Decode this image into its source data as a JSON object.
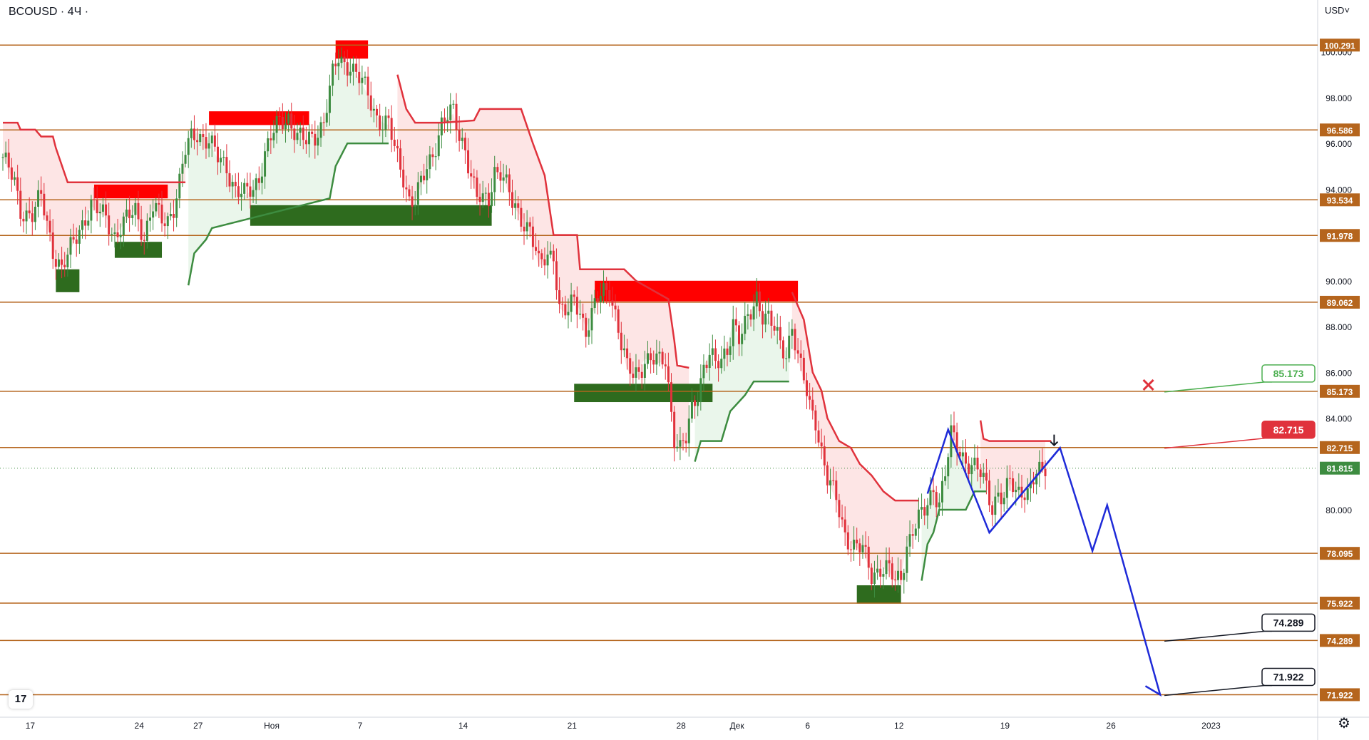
{
  "header": {
    "symbol": "BCOUSD",
    "separator": "·",
    "interval": "4Ч",
    "trailing": "·",
    "currency_menu": "USD˅"
  },
  "logo": {
    "icon": "tradingview-logo",
    "text": "17"
  },
  "settings": {
    "icon": "gear-icon",
    "glyph": "⚙"
  },
  "colors": {
    "level_line": "#b5651d",
    "level_tag": "#b5651d",
    "up": "#3d8c40",
    "down": "#e0323c",
    "cloud_up": "#e8f5e9",
    "cloud_down": "#fde2e2",
    "forecast": "#1f2bd8",
    "supply": "#ff0000",
    "demand": "#2e6b1e",
    "last_price": "#3d8c40"
  },
  "chart_data": {
    "type": "candlestick",
    "symbol": "BCOUSD",
    "interval": "4Ч",
    "currency": "USD",
    "ylim": [
      71.5,
      101.0
    ],
    "y_ticks": [
      "80.000",
      "84.000",
      "86.000",
      "88.000",
      "90.000",
      "94.000",
      "96.000",
      "98.000",
      "100.000"
    ],
    "x_ticks": [
      {
        "label": "17",
        "bar": 3
      },
      {
        "label": "24",
        "bar": 40
      },
      {
        "label": "27",
        "bar": 60
      },
      {
        "label": "Ноя",
        "bar": 85
      },
      {
        "label": "7",
        "bar": 115
      },
      {
        "label": "14",
        "bar": 150
      },
      {
        "label": "21",
        "bar": 187
      },
      {
        "label": "28",
        "bar": 224
      },
      {
        "label": "Дек",
        "bar": 243
      },
      {
        "label": "6",
        "bar": 267
      },
      {
        "label": "12",
        "bar": 298
      },
      {
        "label": "19",
        "bar": 334
      },
      {
        "label": "26",
        "bar": 370
      },
      {
        "label": "2023",
        "bar": 404
      }
    ],
    "levels": [
      {
        "price": 100.291,
        "label": "100.291"
      },
      {
        "price": 96.586,
        "label": "96.586"
      },
      {
        "price": 93.534,
        "label": "93.534"
      },
      {
        "price": 91.978,
        "label": "91.978"
      },
      {
        "price": 89.062,
        "label": "89.062"
      },
      {
        "price": 85.173,
        "label": "85.173"
      },
      {
        "price": 82.715,
        "label": "82.715"
      },
      {
        "price": 78.095,
        "label": "78.095"
      },
      {
        "price": 75.922,
        "label": "75.922"
      },
      {
        "price": 74.289,
        "label": "74.289"
      },
      {
        "price": 71.922,
        "label": "71.922"
      }
    ],
    "last_price": {
      "price": 81.815,
      "label": "81.815"
    },
    "callouts": [
      {
        "price": 85.173,
        "label": "85.173",
        "style": "green",
        "bar": 393
      },
      {
        "price": 82.715,
        "label": "82.715",
        "style": "red",
        "bar": 393
      },
      {
        "price": 74.289,
        "label": "74.289",
        "style": "black",
        "bar": 393
      },
      {
        "price": 71.922,
        "label": "71.922",
        "style": "black",
        "bar": 393
      }
    ],
    "markers": [
      {
        "type": "cross",
        "bar": 389,
        "price": 85.45
      },
      {
        "type": "arrow-down",
        "bar": 357,
        "price": 83.0
      }
    ],
    "zones": [
      {
        "kind": "demand",
        "from": 18,
        "to": 26,
        "low": 89.5,
        "high": 90.5
      },
      {
        "kind": "demand",
        "from": 38,
        "to": 54,
        "low": 91.0,
        "high": 91.7
      },
      {
        "kind": "supply",
        "from": 31,
        "to": 56,
        "low": 93.6,
        "high": 94.2
      },
      {
        "kind": "supply",
        "from": 70,
        "to": 104,
        "low": 96.8,
        "high": 97.4
      },
      {
        "kind": "demand",
        "from": 84,
        "to": 166,
        "low": 92.4,
        "high": 93.3
      },
      {
        "kind": "supply",
        "from": 113,
        "to": 124,
        "low": 99.7,
        "high": 100.5
      },
      {
        "kind": "supply",
        "from": 201,
        "to": 270,
        "low": 89.1,
        "high": 90.0
      },
      {
        "kind": "demand",
        "from": 194,
        "to": 241,
        "low": 84.7,
        "high": 85.5
      },
      {
        "kind": "demand",
        "from": 290,
        "to": 305,
        "low": 75.9,
        "high": 76.7
      }
    ],
    "supertrend": [
      {
        "trend": "down",
        "points": [
          [
            0,
            96.9
          ],
          [
            5,
            96.9
          ],
          [
            6,
            96.6
          ],
          [
            11,
            96.6
          ],
          [
            13,
            96.3
          ],
          [
            17,
            96.3
          ],
          [
            18,
            95.8
          ],
          [
            22,
            94.3
          ],
          [
            62,
            94.3
          ]
        ]
      },
      {
        "trend": "up",
        "points": [
          [
            63,
            89.8
          ],
          [
            65,
            91.2
          ],
          [
            69,
            91.8
          ],
          [
            71,
            92.3
          ],
          [
            111,
            93.6
          ],
          [
            113,
            95.0
          ],
          [
            117,
            96.0
          ],
          [
            131,
            96.0
          ]
        ]
      },
      {
        "trend": "down",
        "points": [
          [
            134,
            99.0
          ],
          [
            137,
            97.5
          ],
          [
            140,
            96.9
          ],
          [
            149,
            96.9
          ],
          [
            160,
            97.0
          ],
          [
            162,
            97.5
          ],
          [
            176,
            97.5
          ],
          [
            180,
            96.0
          ],
          [
            184,
            94.6
          ],
          [
            187,
            92.0
          ],
          [
            195,
            92.0
          ],
          [
            196,
            90.5
          ],
          [
            211,
            90.5
          ],
          [
            215,
            90.0
          ],
          [
            226,
            89.2
          ],
          [
            228,
            87.4
          ],
          [
            229,
            86.3
          ],
          [
            233,
            86.2
          ]
        ]
      },
      {
        "trend": "up",
        "points": [
          [
            235,
            82.1
          ],
          [
            237,
            83.0
          ],
          [
            244,
            83.0
          ],
          [
            247,
            84.3
          ],
          [
            252,
            85.0
          ],
          [
            255,
            85.6
          ],
          [
            267,
            85.6
          ]
        ]
      },
      {
        "trend": "down",
        "points": [
          [
            268,
            89.5
          ],
          [
            272,
            88.3
          ],
          [
            275,
            86.0
          ],
          [
            278,
            85.2
          ],
          [
            280,
            84.0
          ],
          [
            284,
            83.0
          ],
          [
            288,
            82.7
          ],
          [
            291,
            82.0
          ],
          [
            295,
            81.5
          ],
          [
            299,
            80.8
          ],
          [
            303,
            80.4
          ],
          [
            311,
            80.4
          ]
        ]
      },
      {
        "trend": "up",
        "points": [
          [
            312,
            76.9
          ],
          [
            314,
            78.5
          ],
          [
            316,
            79.0
          ],
          [
            318,
            80.0
          ],
          [
            322,
            80.0
          ],
          [
            327,
            80.0
          ],
          [
            330,
            80.8
          ],
          [
            334,
            80.8
          ]
        ]
      },
      {
        "trend": "down",
        "points": [
          [
            332,
            83.9
          ],
          [
            333,
            83.1
          ],
          [
            335,
            83.0
          ],
          [
            356,
            83.0
          ]
        ]
      }
    ],
    "forecast_path": [
      {
        "bar": 314,
        "price": 80.7
      },
      {
        "bar": 321,
        "price": 83.5
      },
      {
        "bar": 335,
        "price": 79.0
      },
      {
        "bar": 359,
        "price": 82.7
      },
      {
        "bar": 370,
        "price": 78.2
      },
      {
        "bar": 375,
        "price": 80.2
      },
      {
        "bar": 393,
        "price": 71.92
      },
      {
        "bar": 388,
        "price": 72.3
      }
    ],
    "forecast_wedge_lower": [
      {
        "bar": 335,
        "price": 79.0
      },
      {
        "bar": 359,
        "price": 82.7
      }
    ],
    "candles_anchor_path": [
      [
        0,
        95.4
      ],
      [
        4,
        94.2
      ],
      [
        6,
        93.1
      ],
      [
        10,
        92.9
      ],
      [
        13,
        93.6
      ],
      [
        17,
        91.4
      ],
      [
        20,
        90.5
      ],
      [
        22,
        91.0
      ],
      [
        26,
        92.3
      ],
      [
        28,
        92.8
      ],
      [
        30,
        93.3
      ],
      [
        32,
        93.0
      ],
      [
        35,
        92.8
      ],
      [
        38,
        92.0
      ],
      [
        40,
        92.3
      ],
      [
        42,
        92.6
      ],
      [
        45,
        93.1
      ],
      [
        48,
        92.0
      ],
      [
        51,
        93.2
      ],
      [
        54,
        92.6
      ],
      [
        56,
        92.7
      ],
      [
        58,
        93.3
      ],
      [
        60,
        94.3
      ],
      [
        62,
        95.6
      ],
      [
        64,
        96.2
      ],
      [
        66,
        96.5
      ],
      [
        70,
        96.1
      ],
      [
        73,
        95.3
      ],
      [
        76,
        95.0
      ],
      [
        79,
        94.0
      ],
      [
        82,
        93.7
      ],
      [
        85,
        94.0
      ],
      [
        87,
        94.6
      ],
      [
        89,
        95.6
      ],
      [
        91,
        96.2
      ],
      [
        94,
        96.9
      ],
      [
        97,
        97.2
      ],
      [
        100,
        96.3
      ],
      [
        103,
        96.0
      ],
      [
        106,
        96.4
      ],
      [
        109,
        97.0
      ],
      [
        112,
        98.9
      ],
      [
        114,
        99.7
      ],
      [
        116,
        99.5
      ],
      [
        118,
        99.5
      ],
      [
        120,
        99.0
      ],
      [
        122,
        98.6
      ],
      [
        124,
        98.1
      ],
      [
        127,
        97.2
      ],
      [
        129,
        96.9
      ],
      [
        131,
        96.8
      ],
      [
        133,
        95.7
      ],
      [
        136,
        94.6
      ],
      [
        138,
        93.6
      ],
      [
        140,
        93.5
      ],
      [
        143,
        94.5
      ],
      [
        146,
        95.6
      ],
      [
        149,
        96.9
      ],
      [
        151,
        97.1
      ],
      [
        153,
        97.3
      ],
      [
        155,
        96.3
      ],
      [
        157,
        95.9
      ],
      [
        159,
        94.6
      ],
      [
        161,
        93.6
      ],
      [
        163,
        93.4
      ],
      [
        165,
        93.6
      ],
      [
        167,
        94.9
      ],
      [
        169,
        94.8
      ],
      [
        171,
        94.1
      ],
      [
        173,
        93.3
      ],
      [
        176,
        92.8
      ],
      [
        179,
        92.3
      ],
      [
        182,
        90.6
      ],
      [
        185,
        91.1
      ],
      [
        187,
        91.3
      ],
      [
        189,
        88.8
      ],
      [
        192,
        88.5
      ],
      [
        194,
        89.2
      ],
      [
        196,
        88.7
      ],
      [
        198,
        87.9
      ],
      [
        200,
        88.5
      ],
      [
        202,
        89.1
      ],
      [
        204,
        89.5
      ],
      [
        206,
        89.7
      ],
      [
        208,
        88.6
      ],
      [
        210,
        87.2
      ],
      [
        212,
        86.1
      ],
      [
        214,
        85.9
      ],
      [
        216,
        86.1
      ],
      [
        218,
        86.6
      ],
      [
        220,
        86.5
      ],
      [
        223,
        86.4
      ],
      [
        225,
        86.6
      ],
      [
        226,
        85.5
      ],
      [
        228,
        83.2
      ],
      [
        230,
        82.6
      ],
      [
        232,
        83.0
      ],
      [
        234,
        84.4
      ],
      [
        236,
        85.2
      ],
      [
        238,
        86.3
      ],
      [
        240,
        86.8
      ],
      [
        242,
        86.2
      ],
      [
        244,
        86.5
      ],
      [
        246,
        87.1
      ],
      [
        248,
        88.3
      ],
      [
        250,
        87.4
      ],
      [
        252,
        87.9
      ],
      [
        254,
        88.6
      ],
      [
        256,
        89.4
      ],
      [
        258,
        88.6
      ],
      [
        260,
        88.3
      ],
      [
        262,
        87.8
      ],
      [
        264,
        87.2
      ],
      [
        266,
        86.9
      ],
      [
        268,
        88.1
      ],
      [
        270,
        86.6
      ],
      [
        272,
        85.6
      ],
      [
        274,
        84.5
      ],
      [
        276,
        84.0
      ],
      [
        278,
        82.6
      ],
      [
        280,
        81.3
      ],
      [
        283,
        80.4
      ],
      [
        286,
        79.0
      ],
      [
        289,
        78.4
      ],
      [
        292,
        78.2
      ],
      [
        295,
        77.2
      ],
      [
        298,
        77.5
      ],
      [
        301,
        77.3
      ],
      [
        303,
        76.8
      ],
      [
        305,
        77.1
      ],
      [
        307,
        78.5
      ],
      [
        309,
        79.1
      ],
      [
        311,
        79.5
      ],
      [
        313,
        79.9
      ],
      [
        316,
        81.0
      ],
      [
        318,
        80.4
      ],
      [
        320,
        81.5
      ],
      [
        322,
        83.2
      ],
      [
        324,
        82.8
      ],
      [
        327,
        82.2
      ],
      [
        330,
        81.8
      ],
      [
        332,
        81.5
      ],
      [
        334,
        81.0
      ],
      [
        336,
        80.2
      ],
      [
        338,
        80.8
      ],
      [
        340,
        80.4
      ],
      [
        342,
        81.2
      ],
      [
        344,
        80.7
      ],
      [
        346,
        81.0
      ],
      [
        348,
        80.8
      ],
      [
        350,
        81.3
      ],
      [
        352,
        81.5
      ],
      [
        354,
        81.8
      ]
    ],
    "bar_count": 355
  }
}
